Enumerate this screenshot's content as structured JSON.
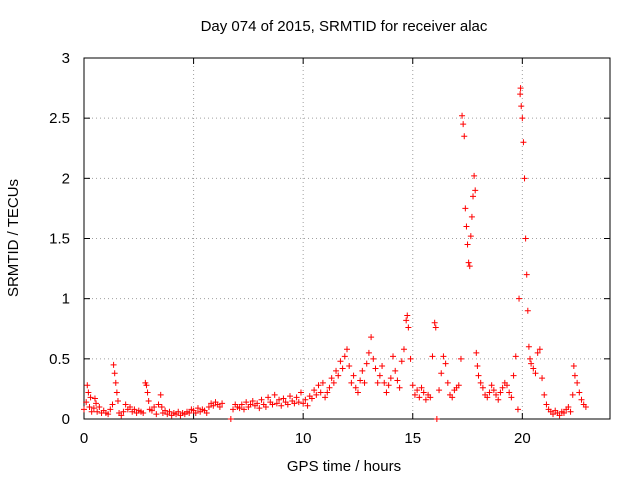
{
  "chart_data": {
    "type": "scatter",
    "title": "Day 074 of 2015, SRMTID for receiver alac",
    "xlabel": "GPS time / hours",
    "ylabel": "SRMTID / TECUs",
    "xlim": [
      0,
      24
    ],
    "ylim": [
      0,
      3
    ],
    "xticks": [
      0,
      5,
      10,
      15,
      20
    ],
    "yticks": [
      0,
      0.5,
      1,
      1.5,
      2,
      2.5,
      3
    ],
    "ytick_labels": [
      "0",
      "0.5",
      "1",
      "1.5",
      "2",
      "2.5",
      "3"
    ],
    "grid": true,
    "marker": "+",
    "color": "#ff0000",
    "series": [
      {
        "name": "SRMTID",
        "points": [
          [
            0.0,
            0.08
          ],
          [
            0.1,
            0.14
          ],
          [
            0.15,
            0.28
          ],
          [
            0.2,
            0.22
          ],
          [
            0.25,
            0.1
          ],
          [
            0.3,
            0.18
          ],
          [
            0.35,
            0.06
          ],
          [
            0.45,
            0.09
          ],
          [
            0.5,
            0.17
          ],
          [
            0.55,
            0.13
          ],
          [
            0.6,
            0.06
          ],
          [
            0.7,
            0.1
          ],
          [
            0.8,
            0.05
          ],
          [
            0.9,
            0.07
          ],
          [
            1.0,
            0.05
          ],
          [
            1.1,
            0.04
          ],
          [
            1.2,
            0.08
          ],
          [
            1.3,
            0.12
          ],
          [
            1.35,
            0.45
          ],
          [
            1.4,
            0.38
          ],
          [
            1.45,
            0.3
          ],
          [
            1.5,
            0.22
          ],
          [
            1.55,
            0.15
          ],
          [
            1.6,
            0.05
          ],
          [
            1.7,
            0.03
          ],
          [
            1.8,
            0.06
          ],
          [
            1.9,
            0.12
          ],
          [
            2.0,
            0.08
          ],
          [
            2.1,
            0.1
          ],
          [
            2.2,
            0.06
          ],
          [
            2.3,
            0.08
          ],
          [
            2.4,
            0.05
          ],
          [
            2.5,
            0.07
          ],
          [
            2.6,
            0.06
          ],
          [
            2.7,
            0.05
          ],
          [
            2.8,
            0.3
          ],
          [
            2.85,
            0.28
          ],
          [
            2.9,
            0.22
          ],
          [
            2.95,
            0.15
          ],
          [
            3.0,
            0.08
          ],
          [
            3.1,
            0.07
          ],
          [
            3.2,
            0.1
          ],
          [
            3.3,
            0.04
          ],
          [
            3.4,
            0.12
          ],
          [
            3.5,
            0.2
          ],
          [
            3.55,
            0.1
          ],
          [
            3.6,
            0.05
          ],
          [
            3.7,
            0.07
          ],
          [
            3.8,
            0.04
          ],
          [
            3.9,
            0.06
          ],
          [
            4.0,
            0.03
          ],
          [
            4.1,
            0.05
          ],
          [
            4.2,
            0.04
          ],
          [
            4.3,
            0.06
          ],
          [
            4.4,
            0.03
          ],
          [
            4.5,
            0.05
          ],
          [
            4.6,
            0.04
          ],
          [
            4.7,
            0.06
          ],
          [
            4.8,
            0.05
          ],
          [
            4.9,
            0.08
          ],
          [
            5.0,
            0.07
          ],
          [
            5.1,
            0.05
          ],
          [
            5.2,
            0.09
          ],
          [
            5.3,
            0.06
          ],
          [
            5.4,
            0.08
          ],
          [
            5.5,
            0.07
          ],
          [
            5.6,
            0.05
          ],
          [
            5.7,
            0.1
          ],
          [
            5.8,
            0.13
          ],
          [
            5.9,
            0.11
          ],
          [
            6.0,
            0.14
          ],
          [
            6.1,
            0.12
          ],
          [
            6.2,
            0.1
          ],
          [
            6.3,
            0.13
          ],
          [
            6.7,
            0.0
          ],
          [
            6.8,
            0.08
          ],
          [
            6.9,
            0.12
          ],
          [
            7.0,
            0.1
          ],
          [
            7.1,
            0.09
          ],
          [
            7.2,
            0.12
          ],
          [
            7.3,
            0.08
          ],
          [
            7.4,
            0.14
          ],
          [
            7.5,
            0.1
          ],
          [
            7.6,
            0.12
          ],
          [
            7.7,
            0.15
          ],
          [
            7.8,
            0.11
          ],
          [
            7.9,
            0.13
          ],
          [
            8.0,
            0.09
          ],
          [
            8.1,
            0.16
          ],
          [
            8.2,
            0.12
          ],
          [
            8.3,
            0.1
          ],
          [
            8.4,
            0.18
          ],
          [
            8.5,
            0.14
          ],
          [
            8.6,
            0.12
          ],
          [
            8.7,
            0.2
          ],
          [
            8.8,
            0.13
          ],
          [
            8.9,
            0.16
          ],
          [
            9.0,
            0.11
          ],
          [
            9.1,
            0.17
          ],
          [
            9.2,
            0.14
          ],
          [
            9.3,
            0.12
          ],
          [
            9.4,
            0.19
          ],
          [
            9.5,
            0.15
          ],
          [
            9.6,
            0.13
          ],
          [
            9.7,
            0.18
          ],
          [
            9.8,
            0.14
          ],
          [
            9.9,
            0.22
          ],
          [
            10.0,
            0.13
          ],
          [
            10.1,
            0.16
          ],
          [
            10.2,
            0.11
          ],
          [
            10.3,
            0.19
          ],
          [
            10.4,
            0.17
          ],
          [
            10.5,
            0.24
          ],
          [
            10.6,
            0.2
          ],
          [
            10.7,
            0.28
          ],
          [
            10.8,
            0.22
          ],
          [
            10.9,
            0.3
          ],
          [
            11.0,
            0.18
          ],
          [
            11.1,
            0.22
          ],
          [
            11.2,
            0.26
          ],
          [
            11.3,
            0.34
          ],
          [
            11.4,
            0.3
          ],
          [
            11.5,
            0.4
          ],
          [
            11.6,
            0.36
          ],
          [
            11.7,
            0.48
          ],
          [
            11.8,
            0.42
          ],
          [
            11.9,
            0.52
          ],
          [
            12.0,
            0.58
          ],
          [
            12.1,
            0.44
          ],
          [
            12.2,
            0.3
          ],
          [
            12.3,
            0.36
          ],
          [
            12.4,
            0.26
          ],
          [
            12.5,
            0.22
          ],
          [
            12.6,
            0.32
          ],
          [
            12.7,
            0.4
          ],
          [
            12.8,
            0.3
          ],
          [
            12.9,
            0.46
          ],
          [
            13.0,
            0.55
          ],
          [
            13.1,
            0.68
          ],
          [
            13.2,
            0.5
          ],
          [
            13.3,
            0.42
          ],
          [
            13.4,
            0.3
          ],
          [
            13.5,
            0.36
          ],
          [
            13.6,
            0.44
          ],
          [
            13.7,
            0.3
          ],
          [
            13.8,
            0.22
          ],
          [
            13.9,
            0.28
          ],
          [
            14.0,
            0.34
          ],
          [
            14.1,
            0.52
          ],
          [
            14.2,
            0.4
          ],
          [
            14.3,
            0.32
          ],
          [
            14.4,
            0.26
          ],
          [
            14.5,
            0.48
          ],
          [
            14.6,
            0.58
          ],
          [
            14.7,
            0.82
          ],
          [
            14.75,
            0.86
          ],
          [
            14.8,
            0.76
          ],
          [
            14.9,
            0.5
          ],
          [
            15.0,
            0.28
          ],
          [
            15.1,
            0.2
          ],
          [
            15.2,
            0.24
          ],
          [
            15.3,
            0.18
          ],
          [
            15.4,
            0.26
          ],
          [
            15.5,
            0.22
          ],
          [
            15.6,
            0.16
          ],
          [
            15.7,
            0.2
          ],
          [
            15.8,
            0.18
          ],
          [
            15.9,
            0.52
          ],
          [
            16.0,
            0.8
          ],
          [
            16.05,
            0.76
          ],
          [
            16.1,
            0.0
          ],
          [
            16.2,
            0.24
          ],
          [
            16.3,
            0.38
          ],
          [
            16.4,
            0.52
          ],
          [
            16.5,
            0.46
          ],
          [
            16.6,
            0.3
          ],
          [
            16.7,
            0.2
          ],
          [
            16.8,
            0.18
          ],
          [
            16.9,
            0.24
          ],
          [
            17.0,
            0.26
          ],
          [
            17.1,
            0.28
          ],
          [
            17.2,
            0.5
          ],
          [
            17.25,
            2.52
          ],
          [
            17.3,
            2.45
          ],
          [
            17.35,
            2.35
          ],
          [
            17.4,
            1.75
          ],
          [
            17.45,
            1.6
          ],
          [
            17.5,
            1.45
          ],
          [
            17.55,
            1.3
          ],
          [
            17.6,
            1.27
          ],
          [
            17.65,
            1.52
          ],
          [
            17.7,
            1.68
          ],
          [
            17.75,
            1.85
          ],
          [
            17.8,
            2.02
          ],
          [
            17.85,
            1.9
          ],
          [
            17.9,
            0.55
          ],
          [
            17.95,
            0.44
          ],
          [
            18.0,
            0.36
          ],
          [
            18.1,
            0.3
          ],
          [
            18.2,
            0.26
          ],
          [
            18.3,
            0.2
          ],
          [
            18.4,
            0.18
          ],
          [
            18.5,
            0.22
          ],
          [
            18.6,
            0.28
          ],
          [
            18.7,
            0.24
          ],
          [
            18.8,
            0.2
          ],
          [
            18.9,
            0.16
          ],
          [
            19.0,
            0.22
          ],
          [
            19.1,
            0.26
          ],
          [
            19.2,
            0.3
          ],
          [
            19.3,
            0.28
          ],
          [
            19.4,
            0.22
          ],
          [
            19.5,
            0.18
          ],
          [
            19.6,
            0.36
          ],
          [
            19.7,
            0.52
          ],
          [
            19.8,
            0.08
          ],
          [
            19.85,
            1.0
          ],
          [
            19.9,
            2.7
          ],
          [
            19.92,
            2.75
          ],
          [
            19.95,
            2.6
          ],
          [
            20.0,
            2.5
          ],
          [
            20.05,
            2.3
          ],
          [
            20.1,
            2.0
          ],
          [
            20.15,
            1.5
          ],
          [
            20.2,
            1.2
          ],
          [
            20.25,
            0.9
          ],
          [
            20.3,
            0.6
          ],
          [
            20.35,
            0.5
          ],
          [
            20.4,
            0.46
          ],
          [
            20.5,
            0.42
          ],
          [
            20.6,
            0.38
          ],
          [
            20.7,
            0.55
          ],
          [
            20.8,
            0.58
          ],
          [
            20.9,
            0.34
          ],
          [
            21.0,
            0.2
          ],
          [
            21.1,
            0.12
          ],
          [
            21.2,
            0.08
          ],
          [
            21.3,
            0.06
          ],
          [
            21.4,
            0.04
          ],
          [
            21.5,
            0.07
          ],
          [
            21.6,
            0.05
          ],
          [
            21.7,
            0.03
          ],
          [
            21.8,
            0.06
          ],
          [
            21.9,
            0.05
          ],
          [
            22.0,
            0.08
          ],
          [
            22.1,
            0.1
          ],
          [
            22.2,
            0.06
          ],
          [
            22.3,
            0.2
          ],
          [
            22.35,
            0.44
          ],
          [
            22.4,
            0.36
          ],
          [
            22.5,
            0.3
          ],
          [
            22.6,
            0.22
          ],
          [
            22.7,
            0.16
          ],
          [
            22.8,
            0.12
          ],
          [
            22.9,
            0.1
          ]
        ]
      }
    ]
  }
}
